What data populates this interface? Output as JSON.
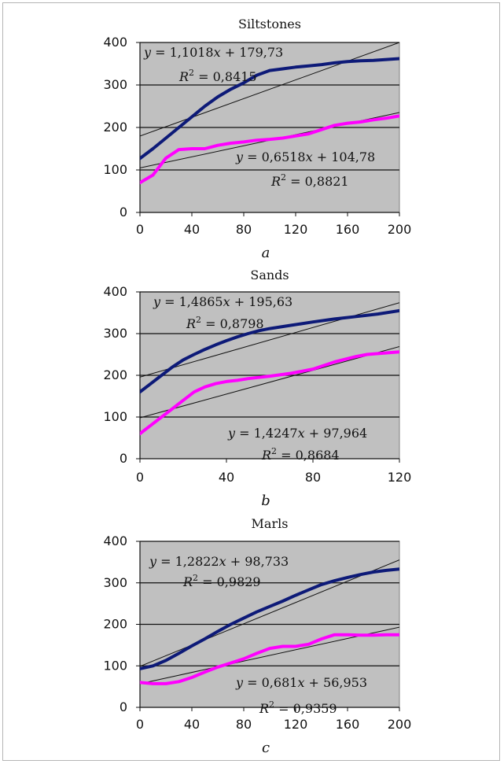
{
  "chart_data": [
    {
      "type": "line",
      "title": "Siltstones",
      "sublabel": "a",
      "xlim": [
        0,
        200
      ],
      "ylim": [
        0,
        400
      ],
      "xticks": [
        0,
        40,
        80,
        120,
        160,
        200
      ],
      "yticks": [
        0,
        100,
        200,
        300,
        400
      ],
      "grid": "horizontal",
      "series": [
        {
          "color": "#0d1a78",
          "x": [
            0,
            10,
            20,
            30,
            40,
            50,
            60,
            70,
            80,
            90,
            100,
            110,
            120,
            130,
            140,
            150,
            160,
            170,
            180,
            190,
            200
          ],
          "y": [
            127,
            150,
            175,
            200,
            225,
            250,
            272,
            290,
            305,
            323,
            334,
            338,
            342,
            345,
            348,
            352,
            355,
            357,
            358,
            360,
            362
          ]
        },
        {
          "color": "#ff00ff",
          "x": [
            0,
            10,
            20,
            30,
            40,
            50,
            60,
            70,
            80,
            90,
            100,
            110,
            120,
            130,
            140,
            150,
            160,
            170,
            180,
            190,
            200
          ],
          "y": [
            70,
            88,
            128,
            148,
            150,
            150,
            158,
            163,
            166,
            170,
            172,
            175,
            180,
            185,
            195,
            205,
            210,
            213,
            218,
            222,
            227
          ]
        }
      ],
      "trendlines": [
        {
          "slope": 1.1018,
          "intercept": 179.73,
          "label": "y = 1,1018x + 179,73",
          "r2": "R² = 0,8415"
        },
        {
          "slope": 0.6518,
          "intercept": 104.78,
          "label": "y = 0,6518x + 104,78",
          "r2": "R² = 0,8821"
        }
      ]
    },
    {
      "type": "line",
      "title": "Sands",
      "sublabel": "b",
      "xlim": [
        0,
        120
      ],
      "ylim": [
        0,
        400
      ],
      "xticks": [
        0,
        40,
        80,
        120
      ],
      "yticks": [
        0,
        100,
        200,
        300,
        400
      ],
      "grid": "horizontal",
      "series": [
        {
          "color": "#0d1a78",
          "x": [
            0,
            5,
            10,
            15,
            20,
            25,
            30,
            35,
            40,
            45,
            50,
            55,
            60,
            70,
            80,
            90,
            100,
            110,
            120
          ],
          "y": [
            160,
            180,
            200,
            220,
            237,
            250,
            262,
            273,
            283,
            292,
            300,
            307,
            312,
            320,
            328,
            335,
            341,
            347,
            355
          ]
        },
        {
          "color": "#ff00ff",
          "x": [
            0,
            5,
            10,
            15,
            20,
            25,
            30,
            35,
            40,
            45,
            50,
            60,
            70,
            80,
            90,
            100,
            105,
            110,
            120
          ],
          "y": [
            60,
            80,
            100,
            120,
            140,
            160,
            172,
            180,
            185,
            188,
            192,
            198,
            205,
            215,
            232,
            245,
            250,
            252,
            256
          ]
        }
      ],
      "trendlines": [
        {
          "slope": 1.4865,
          "intercept": 195.63,
          "label": "y = 1,4865x + 195,63",
          "r2": "R² = 0,8798"
        },
        {
          "slope": 1.4247,
          "intercept": 97.964,
          "label": "y = 1,4247x + 97,964",
          "r2": "R² = 0,8684"
        }
      ]
    },
    {
      "type": "line",
      "title": "Marls",
      "sublabel": "c",
      "xlim": [
        0,
        200
      ],
      "ylim": [
        0,
        400
      ],
      "xticks": [
        0,
        40,
        80,
        120,
        160,
        200
      ],
      "yticks": [
        0,
        100,
        200,
        300,
        400
      ],
      "grid": "horizontal",
      "series": [
        {
          "color": "#0d1a78",
          "x": [
            0,
            10,
            20,
            30,
            40,
            50,
            60,
            70,
            80,
            90,
            100,
            110,
            120,
            130,
            140,
            150,
            160,
            170,
            180,
            190,
            200
          ],
          "y": [
            93,
            100,
            113,
            130,
            148,
            165,
            183,
            200,
            215,
            230,
            243,
            256,
            270,
            283,
            296,
            305,
            313,
            320,
            326,
            330,
            333
          ]
        },
        {
          "color": "#ff00ff",
          "x": [
            0,
            10,
            20,
            30,
            40,
            50,
            60,
            70,
            80,
            90,
            100,
            110,
            120,
            130,
            140,
            150,
            160,
            170,
            180,
            190,
            200
          ],
          "y": [
            60,
            57,
            57,
            62,
            72,
            85,
            97,
            107,
            117,
            130,
            142,
            147,
            147,
            152,
            165,
            175,
            175,
            174,
            174,
            175,
            175
          ]
        }
      ],
      "trendlines": [
        {
          "slope": 1.2822,
          "intercept": 98.733,
          "label": "y = 1,2822x + 98,733",
          "r2": "R² = 0,9829"
        },
        {
          "slope": 0.681,
          "intercept": 56.953,
          "label": "y = 0,681x + 56,953",
          "r2": "R² = 0,9359"
        }
      ]
    }
  ]
}
